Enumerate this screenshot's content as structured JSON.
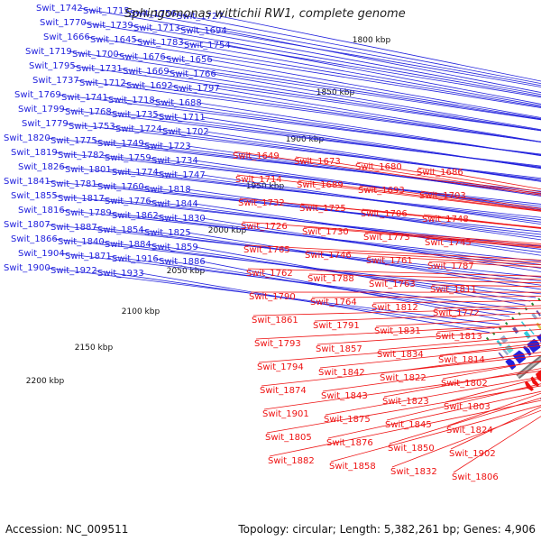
{
  "title": "Sphingomonas wittichii RW1, complete genome",
  "footer": {
    "accession": "Accession: NC_009511",
    "summary": "Topology: circular; Length: 5,382,261 bp; Genes: 4,906"
  },
  "colors": {
    "forward_strand": "#2222dd",
    "reverse_strand": "#ee1111",
    "backbone": "#777777",
    "dotted_ring": "#228833",
    "band_cyan": "#33ccdd",
    "band_purple": "#6655aa"
  },
  "ticks": [
    "1800 kbp",
    "1850 kbp",
    "1900 kbp",
    "1950 kbp",
    "2000 kbp",
    "2050 kbp",
    "2100 kbp",
    "2150 kbp",
    "2200 kbp"
  ],
  "forward_genes": [
    "Swit_1742",
    "Swit_1715",
    "Swit_1756",
    "Swit_1727",
    "Swit_1770",
    "Swit_1739",
    "Swit_1713",
    "Swit_1694",
    "Swit_1666",
    "Swit_1645",
    "Swit_1783",
    "Swit_1754",
    "Swit_1719",
    "Swit_1700",
    "Swit_1676",
    "Swit_1656",
    "Swit_1795",
    "Swit_1731",
    "Swit_1669",
    "Swit_1766",
    "Swit_1737",
    "Swit_1712",
    "Swit_1692",
    "Swit_1797",
    "Swit_1769",
    "Swit_1741",
    "Swit_1718",
    "Swit_1688",
    "Swit_1799",
    "Swit_1768",
    "Swit_1735",
    "Swit_1711",
    "Swit_1779",
    "Swit_1753",
    "Swit_1724",
    "Swit_1702",
    "Swit_1820",
    "Swit_1775",
    "Swit_1749",
    "Swit_1723",
    "Swit_1819",
    "Swit_1782",
    "Swit_1759",
    "Swit_1734",
    "Swit_1826",
    "Swit_1801",
    "Swit_1774",
    "Swit_1747",
    "Swit_1841",
    "Swit_1781",
    "Swit_1760",
    "Swit_1818",
    "Swit_1855",
    "Swit_1817",
    "Swit_1776",
    "Swit_1844",
    "Swit_1816",
    "Swit_1789",
    "Swit_1862",
    "Swit_1830",
    "Swit_1807",
    "Swit_1887",
    "Swit_1854",
    "Swit_1825",
    "Swit_1866",
    "Swit_1840",
    "Swit_1884",
    "Swit_1859",
    "Swit_1904",
    "Swit_1871",
    "Swit_1916",
    "Swit_1886",
    "Swit_1900",
    "Swit_1922",
    "Swit_1933"
  ],
  "reverse_genes": [
    "Swit_1649",
    "Swit_1673",
    "Swit_1680",
    "Swit_1686",
    "Swit_1714",
    "Swit_1689",
    "Swit_1693",
    "Swit_1703",
    "Swit_1732",
    "Swit_1725",
    "Swit_1706",
    "Swit_1748",
    "Swit_1726",
    "Swit_1730",
    "Swit_1773",
    "Swit_1745",
    "Swit_1765",
    "Swit_1746",
    "Swit_1761",
    "Swit_1787",
    "Swit_1762",
    "Swit_1788",
    "Swit_1763",
    "Swit_1811",
    "Swit_1790",
    "Swit_1764",
    "Swit_1812",
    "Swit_1772",
    "Swit_1861",
    "Swit_1791",
    "Swit_1831",
    "Swit_1813",
    "Swit_1793",
    "Swit_1857",
    "Swit_1834",
    "Swit_1814",
    "Swit_1794",
    "Swit_1842",
    "Swit_1822",
    "Swit_1802",
    "Swit_1874",
    "Swit_1843",
    "Swit_1823",
    "Swit_1803",
    "Swit_1901",
    "Swit_1875",
    "Swit_1845",
    "Swit_1824",
    "Swit_1805",
    "Swit_1876",
    "Swit_1850",
    "Swit_1902",
    "Swit_1882",
    "Swit_1858",
    "Swit_1832",
    "Swit_1806"
  ]
}
